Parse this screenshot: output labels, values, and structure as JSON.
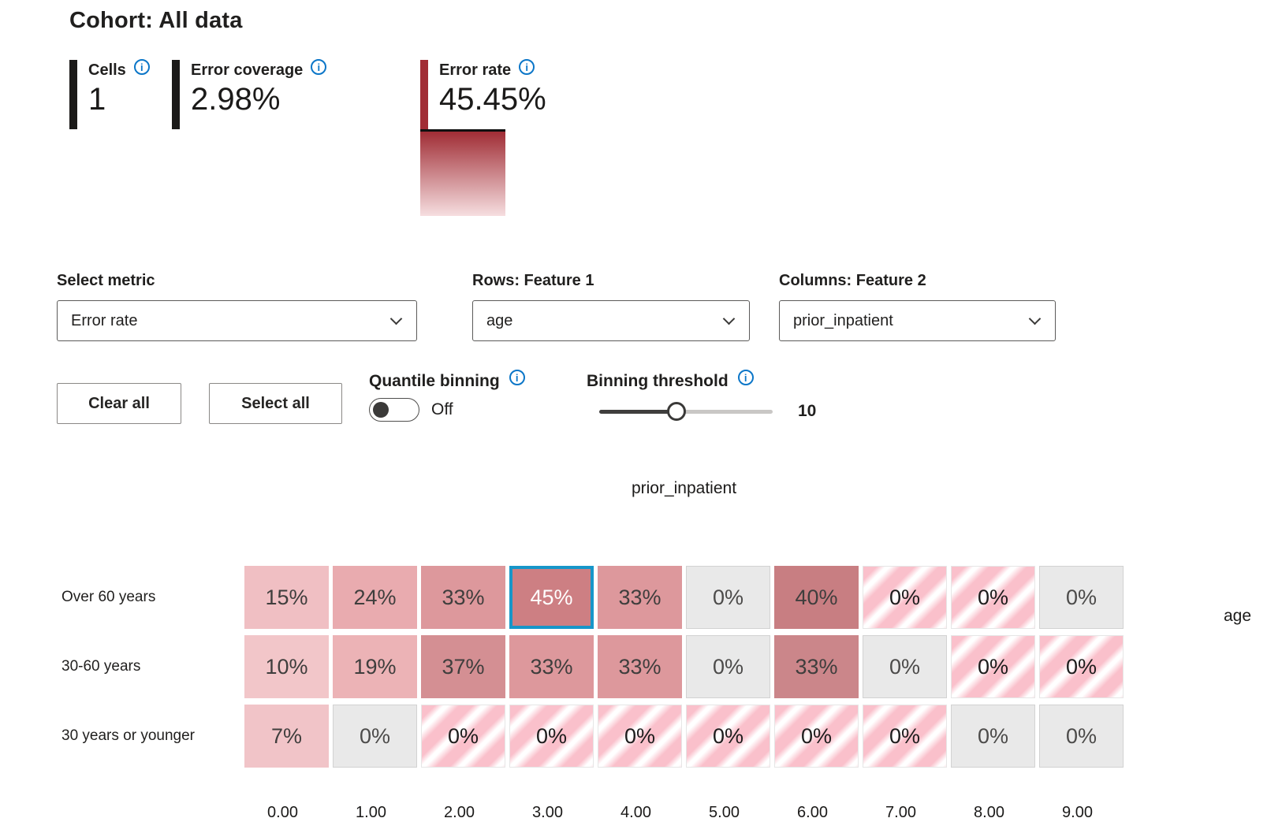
{
  "header": {
    "title": "Cohort: All data",
    "metrics": [
      {
        "label": "Cells",
        "value": "1",
        "accent": "#1b1a19"
      },
      {
        "label": "Error coverage",
        "value": "2.98%",
        "accent": "#1b1a19"
      },
      {
        "label": "Error rate",
        "value": "45.45%",
        "accent": "#a12d35"
      }
    ],
    "error_rate_legend": {
      "gradient_top": "#a02d35",
      "gradient_bottom": "#f6dee0"
    }
  },
  "controls": {
    "metric": {
      "label": "Select metric",
      "value": "Error rate"
    },
    "rows_feature": {
      "label": "Rows: Feature 1",
      "value": "age"
    },
    "columns_feature": {
      "label": "Columns: Feature 2",
      "value": "prior_inpatient"
    },
    "clear_all": "Clear all",
    "select_all": "Select all",
    "quantile_binning": {
      "label": "Quantile binning",
      "state": "Off"
    },
    "binning_threshold": {
      "label": "Binning threshold",
      "value": "10"
    }
  },
  "chart_data": {
    "type": "heatmap",
    "metric": "Error rate",
    "title": "prior_inpatient",
    "row_axis_label": "age",
    "columns": [
      "0.00",
      "1.00",
      "2.00",
      "3.00",
      "4.00",
      "5.00",
      "6.00",
      "7.00",
      "8.00",
      "9.00"
    ],
    "rows": [
      {
        "label": "Over 60 years",
        "cells": [
          {
            "display": "15%",
            "value": 15,
            "style": "heat",
            "color": "#f0bfc3"
          },
          {
            "display": "24%",
            "value": 24,
            "style": "heat",
            "color": "#e9abaf"
          },
          {
            "display": "33%",
            "value": 33,
            "style": "heat",
            "color": "#dd989c"
          },
          {
            "display": "45%",
            "value": 45,
            "style": "heat",
            "color": "#cd7f83",
            "selected": true
          },
          {
            "display": "33%",
            "value": 33,
            "style": "heat",
            "color": "#dd989c"
          },
          {
            "display": "0%",
            "value": 0,
            "style": "empty"
          },
          {
            "display": "40%",
            "value": 40,
            "style": "heat",
            "color": "#c87e82"
          },
          {
            "display": "0%",
            "value": 0,
            "style": "striped"
          },
          {
            "display": "0%",
            "value": 0,
            "style": "striped"
          },
          {
            "display": "0%",
            "value": 0,
            "style": "empty"
          }
        ]
      },
      {
        "label": "30-60 years",
        "cells": [
          {
            "display": "10%",
            "value": 10,
            "style": "heat",
            "color": "#f2c6c9"
          },
          {
            "display": "19%",
            "value": 19,
            "style": "heat",
            "color": "#ecb3b6"
          },
          {
            "display": "37%",
            "value": 37,
            "style": "heat",
            "color": "#d48f93"
          },
          {
            "display": "33%",
            "value": 33,
            "style": "heat",
            "color": "#dd989c"
          },
          {
            "display": "33%",
            "value": 33,
            "style": "heat",
            "color": "#dd989c"
          },
          {
            "display": "0%",
            "value": 0,
            "style": "empty"
          },
          {
            "display": "33%",
            "value": 33,
            "style": "heat",
            "color": "#cb868a"
          },
          {
            "display": "0%",
            "value": 0,
            "style": "empty"
          },
          {
            "display": "0%",
            "value": 0,
            "style": "striped"
          },
          {
            "display": "0%",
            "value": 0,
            "style": "striped"
          }
        ]
      },
      {
        "label": "30 years or younger",
        "cells": [
          {
            "display": "7%",
            "value": 7,
            "style": "heat",
            "color": "#f1c4c8"
          },
          {
            "display": "0%",
            "value": 0,
            "style": "empty"
          },
          {
            "display": "0%",
            "value": 0,
            "style": "striped"
          },
          {
            "display": "0%",
            "value": 0,
            "style": "striped"
          },
          {
            "display": "0%",
            "value": 0,
            "style": "striped"
          },
          {
            "display": "0%",
            "value": 0,
            "style": "striped"
          },
          {
            "display": "0%",
            "value": 0,
            "style": "striped"
          },
          {
            "display": "0%",
            "value": 0,
            "style": "striped"
          },
          {
            "display": "0%",
            "value": 0,
            "style": "empty"
          },
          {
            "display": "0%",
            "value": 0,
            "style": "empty"
          }
        ]
      }
    ],
    "selected_cell": {
      "row": "Over 60 years",
      "column": "3.00",
      "display": "45%"
    },
    "colors": {
      "selected_border": "#1796c9",
      "empty_bg": "#e9e9e9",
      "stripe_pink": "#fac0cb"
    }
  }
}
